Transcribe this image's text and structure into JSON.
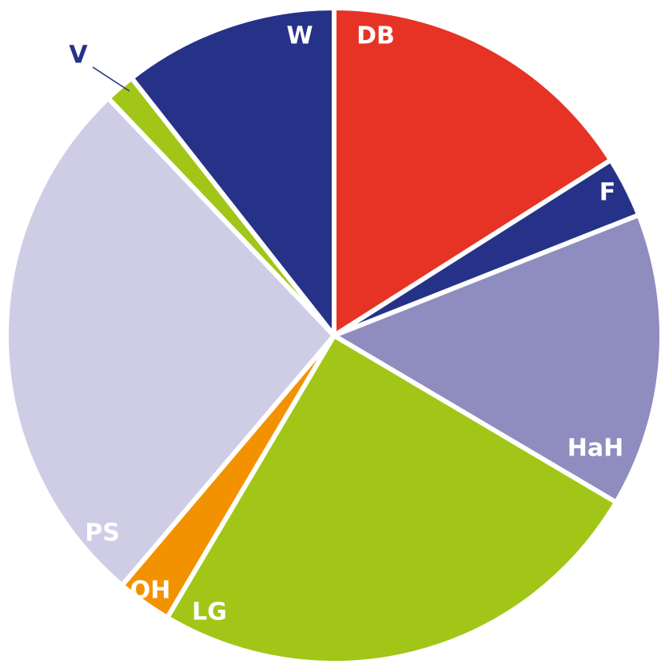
{
  "chart_data": {
    "type": "pie",
    "categories": [
      "DB",
      "F",
      "HaH",
      "LG",
      "OH",
      "PS",
      "V",
      "W"
    ],
    "values": [
      16,
      3,
      14.5,
      25,
      2.7,
      26.7,
      1.5,
      10.6
    ],
    "colors": [
      "#e63325",
      "#263287",
      "#8f8cbf",
      "#a2c617",
      "#f39200",
      "#cfcde6",
      "#a2c617",
      "#263287"
    ]
  }
}
